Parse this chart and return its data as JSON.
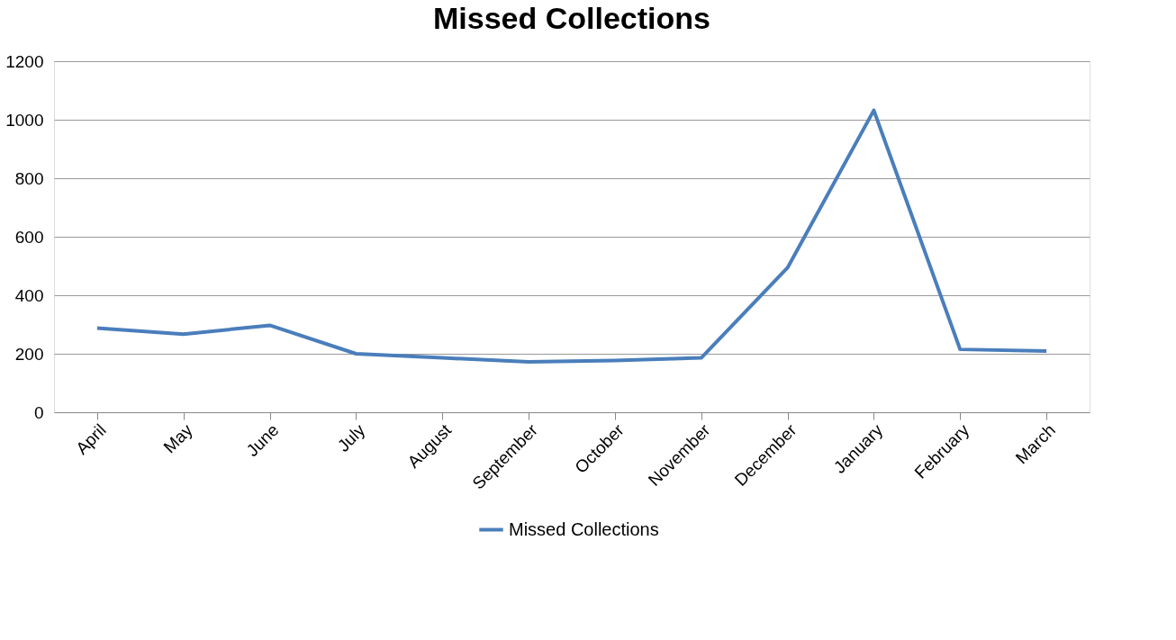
{
  "chart_data": {
    "type": "line",
    "title": "Missed Collections",
    "categories": [
      "April",
      "May",
      "June",
      "July",
      "August",
      "September",
      "October",
      "November",
      "December",
      "January",
      "February",
      "March"
    ],
    "series": [
      {
        "name": "Missed Collections",
        "color": "#4a7ebb",
        "values": [
          288,
          267,
          297,
          200,
          186,
          172,
          177,
          186,
          494,
          1032,
          215,
          209
        ]
      }
    ],
    "ylim": [
      0,
      1200
    ],
    "yticks": [
      0,
      200,
      400,
      600,
      800,
      1000,
      1200
    ],
    "grid": "y",
    "legend": "bottom",
    "marker": "none",
    "line_style": "solid"
  }
}
